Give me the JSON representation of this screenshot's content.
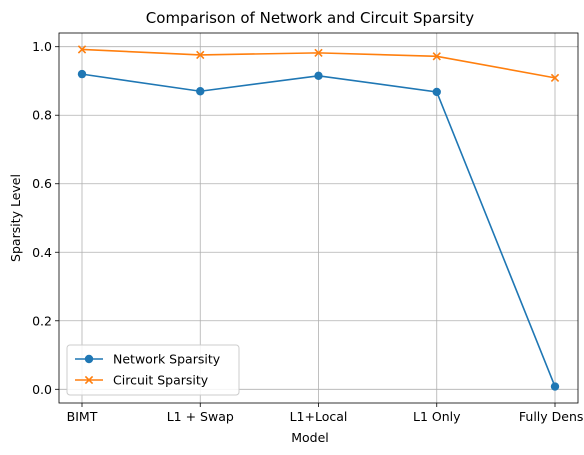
{
  "chart_data": {
    "type": "line",
    "title": "Comparison of Network and Circuit Sparsity",
    "xlabel": "Model",
    "ylabel": "Sparsity Level",
    "categories": [
      "BIMT",
      "L1 + Swap",
      "L1+Local",
      "L1 Only",
      "Fully Dense"
    ],
    "ylim": [
      -0.04,
      1.04
    ],
    "yticks": [
      0.0,
      0.2,
      0.4,
      0.6,
      0.8,
      1.0
    ],
    "ytick_labels": [
      "0.0",
      "0.2",
      "0.4",
      "0.6",
      "0.8",
      "1.0"
    ],
    "grid": true,
    "legend_position": "lower-left",
    "series": [
      {
        "name": "Network Sparsity",
        "marker": "circle",
        "color": "#1f77b4",
        "values": [
          0.92,
          0.87,
          0.915,
          0.868,
          0.008
        ]
      },
      {
        "name": "Circuit Sparsity",
        "marker": "x",
        "color": "#ff7f0e",
        "values": [
          0.992,
          0.976,
          0.982,
          0.972,
          0.909
        ]
      }
    ]
  }
}
